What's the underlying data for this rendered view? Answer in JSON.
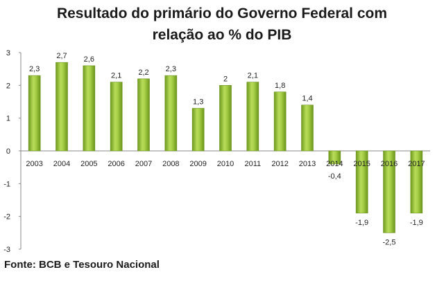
{
  "title_line1": "Resultado do primário do Governo Federal com",
  "title_line2": "relação ao % do PIB",
  "source": "Fonte: BCB e Tesouro Nacional",
  "chart_data": {
    "type": "bar",
    "categories": [
      "2003",
      "2004",
      "2005",
      "2006",
      "2007",
      "2008",
      "2009",
      "2010",
      "2011",
      "2012",
      "2013",
      "2014",
      "2015",
      "2016",
      "2017"
    ],
    "values": [
      2.3,
      2.7,
      2.6,
      2.1,
      2.2,
      2.3,
      1.3,
      2,
      2.1,
      1.8,
      1.4,
      -0.4,
      -1.9,
      -2.5,
      -1.9
    ],
    "value_labels": [
      "2,3",
      "2,7",
      "2,6",
      "2,1",
      "2,2",
      "2,3",
      "1,3",
      "2",
      "2,1",
      "1,8",
      "1,4",
      "-0,4",
      "-1,9",
      "-2,5",
      "-1,9"
    ],
    "yticks": [
      "3",
      "2",
      "1",
      "0",
      "-1",
      "-2",
      "-3"
    ],
    "ylim": [
      -3,
      3
    ],
    "grid": false,
    "legend": "none",
    "bar_color": "#8ab833"
  }
}
